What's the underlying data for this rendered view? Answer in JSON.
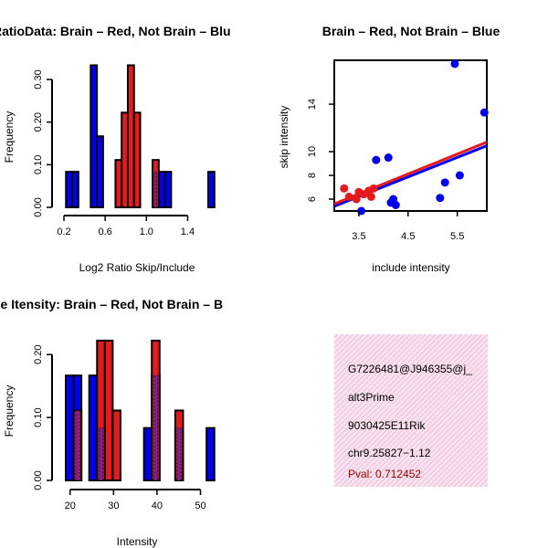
{
  "colors": {
    "red": "#e41a1c",
    "blue": "#0000ee",
    "overlap": "#7a2190",
    "pval": "#990000",
    "panel": "#f4d6ea"
  },
  "chart_data": [
    {
      "type": "bar",
      "title": "RatioData: Brain – Red, Not Brain – Blu",
      "xlabel": "Log2 Ratio Skip/Include",
      "ylabel": "Frequency",
      "xlim": [
        0.2,
        1.6
      ],
      "ylim": [
        0,
        0.33
      ],
      "xticks": [
        "0.2",
        "0.6",
        "1.0",
        "1.4"
      ],
      "xtick_values": [
        0.2,
        0.6,
        1.0,
        1.4
      ],
      "yticks": [
        "0.00",
        "0.10",
        "0.20",
        "0.30"
      ],
      "ytick_values": [
        0,
        0.1,
        0.2,
        0.3
      ],
      "bin_width": 0.06,
      "series": [
        {
          "name": "Not Brain",
          "color": "blue",
          "bins": [
            [
              0.22,
              0.0833
            ],
            [
              0.28,
              0.0833
            ],
            [
              0.46,
              0.3333
            ],
            [
              0.52,
              0.1667
            ],
            [
              1.12,
              0.0833
            ],
            [
              1.18,
              0.0833
            ],
            [
              1.6,
              0.0833
            ]
          ]
        },
        {
          "name": "Brain",
          "color": "red",
          "bins": [
            [
              0.7,
              0.1111
            ],
            [
              0.76,
              0.2222
            ],
            [
              0.82,
              0.3333
            ],
            [
              0.88,
              0.2222
            ],
            [
              1.06,
              0.1111
            ]
          ]
        }
      ],
      "overlap_bins": [
        [
          1.06,
          0.0833
        ]
      ]
    },
    {
      "type": "scatter",
      "title": "Brain – Red, Not Brain – Blue",
      "xlabel": "include intensity",
      "ylabel": "skip intensity",
      "xlim": [
        3.0,
        6.1
      ],
      "ylim": [
        5,
        17.7
      ],
      "xticks": [
        "3.5",
        "4.5",
        "5.5"
      ],
      "xtick_values": [
        3.5,
        4.5,
        5.5
      ],
      "yticks": [
        "6",
        "8",
        "10",
        "14"
      ],
      "ytick_values": [
        6,
        8,
        10,
        14
      ],
      "series": [
        {
          "name": "Not Brain",
          "color": "blue",
          "points": [
            [
              3.55,
              5.0
            ],
            [
              3.85,
              9.3
            ],
            [
              4.1,
              9.5
            ],
            [
              4.15,
              5.7
            ],
            [
              4.2,
              6.0
            ],
            [
              4.25,
              5.5
            ],
            [
              5.15,
              6.1
            ],
            [
              5.25,
              7.4
            ],
            [
              5.45,
              17.4
            ],
            [
              5.55,
              8.0
            ],
            [
              6.05,
              13.3
            ]
          ],
          "fit": [
            [
              3.0,
              5.4
            ],
            [
              6.1,
              10.5
            ]
          ]
        },
        {
          "name": "Brain",
          "color": "red",
          "points": [
            [
              3.2,
              6.9
            ],
            [
              3.3,
              6.2
            ],
            [
              3.45,
              6.0
            ],
            [
              3.5,
              6.6
            ],
            [
              3.6,
              6.4
            ],
            [
              3.7,
              6.7
            ],
            [
              3.75,
              6.2
            ],
            [
              3.8,
              6.9
            ]
          ],
          "fit": [
            [
              3.0,
              5.6
            ],
            [
              6.1,
              10.8
            ]
          ]
        }
      ]
    },
    {
      "type": "bar",
      "title": "ne Itensity: Brain – Red, Not Brain – B",
      "xlabel": "Intensity",
      "ylabel": "Frequency",
      "xlim": [
        19,
        52
      ],
      "ylim": [
        0,
        0.225
      ],
      "xticks": [
        "20",
        "30",
        "40",
        "50"
      ],
      "xtick_values": [
        20,
        30,
        40,
        50
      ],
      "yticks": [
        "0.00",
        "0.10",
        "0.20"
      ],
      "ytick_values": [
        0,
        0.1,
        0.2
      ],
      "bin_width": 1.8,
      "series": [
        {
          "name": "Not Brain",
          "color": "blue",
          "bins": [
            [
              19.0,
              0.1667
            ],
            [
              20.8,
              0.1667
            ],
            [
              24.4,
              0.1667
            ],
            [
              26.2,
              0.0833
            ],
            [
              37.0,
              0.0833
            ],
            [
              38.8,
              0.1667
            ],
            [
              44.2,
              0.0833
            ],
            [
              51.4,
              0.0833
            ]
          ]
        },
        {
          "name": "Brain",
          "color": "red",
          "bins": [
            [
              20.8,
              0.1111
            ],
            [
              26.2,
              0.2222
            ],
            [
              28.0,
              0.2222
            ],
            [
              29.8,
              0.1111
            ],
            [
              38.8,
              0.2222
            ],
            [
              44.2,
              0.1111
            ]
          ]
        }
      ],
      "overlap_bins": [
        [
          20.8,
          0.1111
        ],
        [
          26.2,
          0.0833
        ],
        [
          38.8,
          0.1667
        ],
        [
          44.2,
          0.0833
        ]
      ]
    }
  ],
  "info_panel": {
    "id": "G7226481@J946355@j_",
    "event_type": "alt3Prime",
    "gene": "9030425E11Rik",
    "location": "chr9.25827−1.12",
    "pval": "Pval: 0.712452"
  }
}
